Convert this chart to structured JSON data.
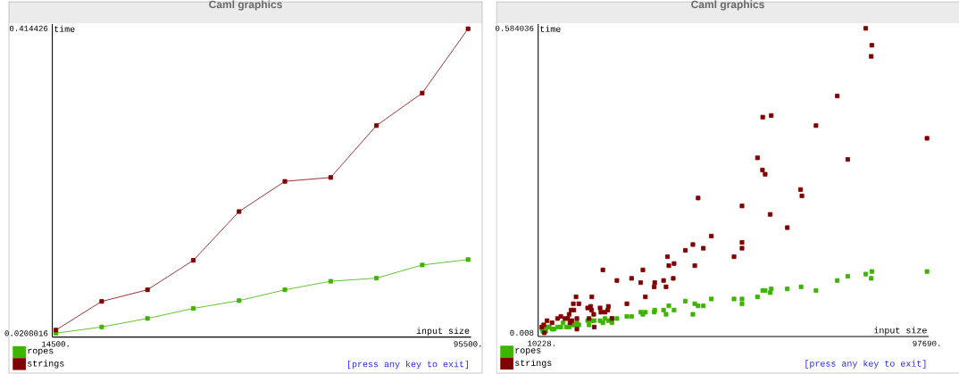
{
  "chart_data": [
    {
      "type": "line",
      "title": "Caml graphics",
      "xlabel": "input size",
      "ylabel": "time",
      "marker": "square",
      "legend": "bottom left",
      "x": [
        14500,
        23500,
        32500,
        41500,
        50500,
        59500,
        68500,
        77500,
        86500,
        95500
      ],
      "xlim": [
        13800,
        96100
      ],
      "ylim": [
        0.016,
        0.42
      ],
      "xticks": [
        {
          "value": 14500,
          "label": "14500."
        },
        {
          "value": 95500,
          "label": "95500."
        }
      ],
      "yticks": [
        0.0208016,
        0.414426
      ],
      "annotations": [
        "[press any key to exit]"
      ],
      "series": [
        {
          "name": "ropes",
          "color": "#3cb400",
          "values": [
            0.021,
            0.029,
            0.04,
            0.053,
            0.063,
            0.077,
            0.088,
            0.092,
            0.109,
            0.116
          ]
        },
        {
          "name": "strings",
          "color": "#800000",
          "values": [
            0.025,
            0.062,
            0.077,
            0.115,
            0.178,
            0.217,
            0.222,
            0.289,
            0.331,
            0.414
          ]
        }
      ]
    },
    {
      "type": "scatter",
      "title": "Caml graphics",
      "xlabel": "input size",
      "ylabel": "time",
      "marker": "square",
      "legend": "bottom left",
      "xlim": [
        9400,
        98070
      ],
      "ylim": [
        0.001,
        0.592
      ],
      "xticks": [
        {
          "value": 10228,
          "label": "10228."
        },
        {
          "value": 97690,
          "label": "97690."
        }
      ],
      "yticks": [
        0.008,
        0.584036
      ],
      "annotations": [
        "[press any key to exit]"
      ],
      "series": [
        {
          "name": "ropes",
          "color": "#3cb400",
          "x": [
            97690,
            85160,
            83780,
            85030,
            79700,
            77320,
            72490,
            69100,
            65970,
            62330,
            62080,
            60390,
            60950,
            59200,
            55690,
            55690,
            53870,
            48730,
            46910,
            45720,
            44960,
            44530,
            42830,
            40260,
            39070,
            38440,
            37880,
            35870,
            35750,
            33740,
            32680,
            33180,
            30610,
            29540,
            27280,
            26150,
            26150,
            25340,
            24590,
            24090,
            23460,
            22140,
            21580,
            20950,
            20640,
            18630,
            18190,
            17690,
            17060,
            16440,
            15810,
            15060,
            14550,
            13800,
            12990,
            12550,
            11920,
            11420,
            11110,
            10670,
            10290,
            10480
          ],
          "values": [
            0.124,
            0.124,
            0.119,
            0.111,
            0.115,
            0.107,
            0.088,
            0.095,
            0.091,
            0.091,
            0.084,
            0.088,
            0.088,
            0.076,
            0.072,
            0.063,
            0.072,
            0.072,
            0.059,
            0.059,
            0.063,
            0.043,
            0.068,
            0.051,
            0.059,
            0.043,
            0.051,
            0.051,
            0.047,
            0.047,
            0.047,
            0.043,
            0.039,
            0.039,
            0.035,
            0.027,
            0.035,
            0.031,
            0.035,
            0.027,
            0.031,
            0.031,
            0.031,
            0.023,
            0.031,
            0.023,
            0.027,
            0.023,
            0.023,
            0.019,
            0.019,
            0.027,
            0.019,
            0.019,
            0.015,
            0.015,
            0.019,
            0.019,
            0.011,
            0.015,
            0.015,
            0.011
          ]
        },
        {
          "name": "strings",
          "color": "#800000",
          "x": [
            83780,
            85160,
            85030,
            77320,
            60390,
            62330,
            72490,
            97690,
            59200,
            79700,
            60330,
            60950,
            68980,
            69290,
            45720,
            55690,
            62080,
            65970,
            48730,
            44530,
            55690,
            46910,
            42830,
            55690,
            53870,
            38760,
            39070,
            40260,
            44960,
            24090,
            33180,
            30610,
            27280,
            32680,
            37880,
            40070,
            35870,
            35750,
            38440,
            33740,
            18000,
            21580,
            29540,
            17380,
            18630,
            20640,
            21330,
            21510,
            25340,
            23460,
            23650,
            24590,
            25210,
            22020,
            17500,
            16870,
            26150,
            20950,
            22140,
            18190,
            18190,
            16440,
            16120,
            15500,
            14550,
            13800,
            12550,
            11420,
            10670,
            10228,
            10790,
            16620,
            17060
          ],
          "values": [
            0.584,
            0.552,
            0.531,
            0.456,
            0.416,
            0.419,
            0.4,
            0.376,
            0.339,
            0.336,
            0.316,
            0.308,
            0.279,
            0.267,
            0.263,
            0.248,
            0.232,
            0.207,
            0.191,
            0.175,
            0.179,
            0.168,
            0.164,
            0.168,
            0.152,
            0.152,
            0.135,
            0.139,
            0.135,
            0.127,
            0.127,
            0.111,
            0.107,
            0.103,
            0.107,
            0.111,
            0.103,
            0.095,
            0.095,
            0.076,
            0.076,
            0.076,
            0.063,
            0.063,
            0.063,
            0.055,
            0.058,
            0.051,
            0.058,
            0.055,
            0.047,
            0.047,
            0.051,
            0.043,
            0.051,
            0.051,
            0.035,
            0.035,
            0.019,
            0.015,
            0.035,
            0.043,
            0.035,
            0.035,
            0.039,
            0.035,
            0.027,
            0.031,
            0.023,
            0.019,
            0.008,
            0.027,
            0.031
          ]
        }
      ]
    }
  ]
}
